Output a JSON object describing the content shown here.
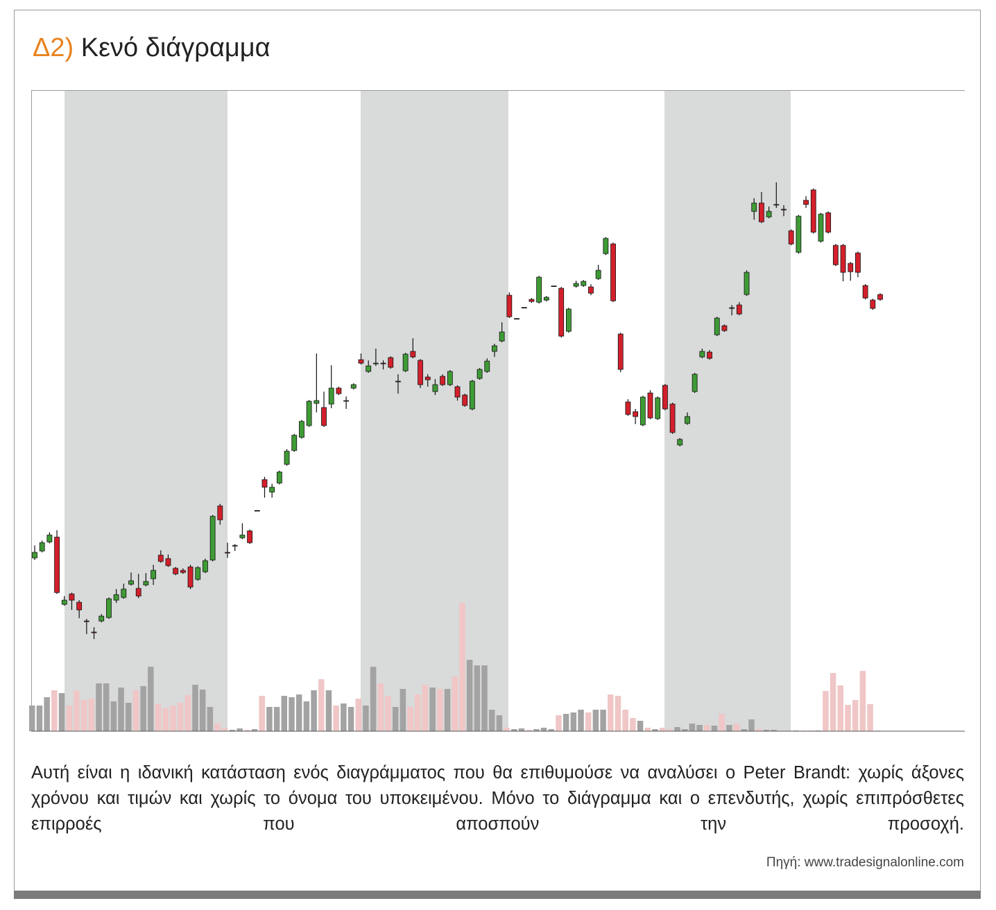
{
  "chart_data": {
    "type": "candlestick",
    "title_prefix": "Δ2)",
    "title": "Κενό διάγραμμα",
    "open": [
      250,
      260,
      273,
      280,
      183,
      198,
      186,
      159,
      143,
      159,
      164,
      189,
      193,
      212,
      206,
      211,
      220,
      254,
      249,
      235,
      232,
      237,
      219,
      230,
      247,
      325,
      258,
      267,
      279,
      289,
      318,
      363,
      345,
      358,
      385,
      405,
      424,
      441,
      473,
      467,
      472,
      495,
      476,
      495,
      536,
      519,
      530,
      531,
      539,
      504,
      520,
      548,
      535,
      511,
      490,
      512,
      500,
      497,
      485,
      465,
      509,
      519,
      548,
      563,
      629,
      595,
      611,
      623,
      619,
      622,
      642,
      639,
      577,
      642,
      643,
      641,
      653,
      689,
      703,
      573,
      475,
      461,
      442,
      488,
      451,
      499,
      472,
      413,
      444,
      490,
      540,
      547,
      572,
      585,
      610,
      615,
      630,
      750,
      762,
      742,
      759,
      753,
      722,
      691,
      766,
      781,
      707,
      748,
      701,
      701,
      675,
      690,
      643,
      622,
      630
    ],
    "high": [
      268,
      275,
      287,
      290,
      195,
      200,
      189,
      162,
      150,
      169,
      193,
      205,
      213,
      229,
      227,
      228,
      240,
      261,
      255,
      237,
      235,
      240,
      238,
      249,
      312,
      328,
      272,
      270,
      300,
      291,
      318,
      367,
      357,
      376,
      407,
      429,
      449,
      478,
      545,
      490,
      528,
      497,
      483,
      502,
      545,
      535,
      552,
      535,
      541,
      515,
      546,
      567,
      537,
      515,
      508,
      515,
      521,
      499,
      487,
      507,
      524,
      538,
      559,
      590,
      633,
      595,
      611,
      625,
      657,
      628,
      642,
      641,
      611,
      650,
      651,
      645,
      673,
      713,
      705,
      575,
      479,
      465,
      484,
      492,
      483,
      501,
      474,
      423,
      460,
      517,
      552,
      550,
      598,
      587,
      615,
      619,
      665,
      769,
      778,
      757,
      792,
      759,
      724,
      745,
      772,
      783,
      748,
      750,
      703,
      703,
      677,
      692,
      645,
      624,
      632
    ],
    "low": [
      247,
      258,
      271,
      198,
      181,
      175,
      163,
      140,
      133,
      157,
      162,
      185,
      191,
      210,
      192,
      209,
      211,
      243,
      237,
      225,
      227,
      205,
      217,
      228,
      245,
      298,
      250,
      260,
      277,
      270,
      318,
      337,
      337,
      356,
      383,
      403,
      422,
      439,
      460,
      439,
      466,
      485,
      465,
      493,
      529,
      517,
      527,
      522,
      523,
      487,
      518,
      538,
      495,
      497,
      485,
      498,
      498,
      477,
      468,
      463,
      507,
      517,
      540,
      561,
      596,
      595,
      611,
      618,
      617,
      620,
      642,
      568,
      575,
      640,
      641,
      629,
      651,
      687,
      619,
      518,
      455,
      443,
      440,
      450,
      449,
      463,
      429,
      411,
      442,
      488,
      538,
      536,
      570,
      576,
      600,
      600,
      628,
      738,
      733,
      740,
      755,
      743,
      701,
      689,
      755,
      718,
      705,
      718,
      671,
      649,
      650,
      655,
      623,
      608,
      621
    ],
    "close": [
      258,
      272,
      283,
      200,
      189,
      189,
      175,
      158,
      142,
      166,
      191,
      197,
      205,
      217,
      195,
      216,
      232,
      245,
      239,
      227,
      229,
      208,
      236,
      246,
      310,
      305,
      257,
      268,
      283,
      272,
      318,
      352,
      352,
      374,
      404,
      427,
      447,
      476,
      477,
      441,
      495,
      487,
      477,
      500,
      531,
      527,
      531,
      530,
      525,
      505,
      544,
      540,
      500,
      507,
      500,
      500,
      519,
      482,
      470,
      505,
      522,
      534,
      556,
      576,
      598,
      595,
      611,
      620,
      655,
      626,
      642,
      570,
      609,
      646,
      649,
      632,
      665,
      711,
      621,
      522,
      457,
      454,
      482,
      452,
      481,
      465,
      431,
      421,
      454,
      515,
      548,
      538,
      596,
      578,
      611,
      602,
      662,
      762,
      735,
      750,
      760,
      752,
      703,
      743,
      760,
      720,
      746,
      720,
      673,
      662,
      663,
      662,
      625,
      610,
      623
    ],
    "volume": [
      37,
      37,
      49,
      59,
      55,
      37,
      59,
      45,
      47,
      69,
      69,
      43,
      63,
      41,
      59,
      65,
      93,
      39,
      33,
      37,
      41,
      52,
      67,
      60,
      35,
      11,
      4,
      2,
      4,
      2,
      3,
      51,
      35,
      35,
      51,
      49,
      53,
      43,
      59,
      75,
      59,
      37,
      40,
      35,
      47,
      37,
      93,
      69,
      51,
      35,
      61,
      35,
      53,
      67,
      63,
      61,
      61,
      79,
      185,
      103,
      95,
      95,
      31,
      23,
      5,
      3,
      4,
      2,
      3,
      5,
      3,
      23,
      25,
      27,
      31,
      27,
      31,
      31,
      53,
      51,
      31,
      19,
      15,
      5,
      3,
      5,
      3,
      6,
      3,
      11,
      9,
      9,
      8,
      25,
      9,
      11,
      3,
      17,
      3,
      2,
      2,
      1,
      1,
      1,
      1,
      1,
      1,
      58,
      84,
      66,
      38,
      45,
      87,
      39,
      1
    ],
    "ylim": [
      0,
      925
    ],
    "up_color": "#3f9b35",
    "down_color": "#d3202c",
    "volume_up_color": "#a3a3a3",
    "volume_down_color": "#f0c6c6"
  },
  "caption": "Αυτή είναι η ιδανική κατάσταση ενός διαγράμματος που θα επιθυμούσε να αναλύσει ο Peter Brandt: χωρίς άξονες χρόνου και τιμών και χωρίς το όνομα του υποκειμένου. Μόνο το διάγραμμα και ο επενδυτής, χωρίς επιπρόσθετες επιρροές που αποσπούν την προσοχή.",
  "source": "Πηγή: www.tradesignalonline.com"
}
